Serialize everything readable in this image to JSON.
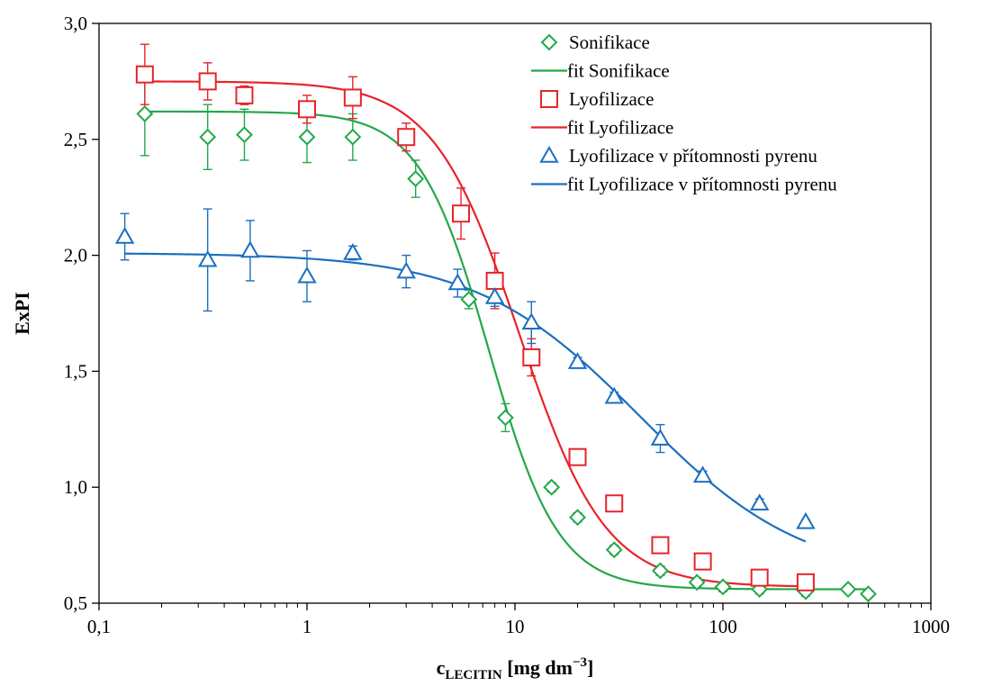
{
  "chart_data": {
    "type": "scatter",
    "xscale": "log",
    "xlim": [
      0.1,
      1000
    ],
    "ylim": [
      0.5,
      3.0
    ],
    "xlabel": "c",
    "xlabel_sub": "LECITIN",
    "xlabel_unit": " [mg dm",
    "xlabel_sup": "−3",
    "xlabel_close": "]",
    "ylabel": "ExPI",
    "grid": false,
    "legend_position": "top-right",
    "x_ticks": [
      0.1,
      1,
      10,
      100,
      1000
    ],
    "x_tick_labels": [
      "0,1",
      "1",
      "10",
      "100",
      "1000"
    ],
    "y_ticks": [
      0.5,
      1.0,
      1.5,
      2.0,
      2.5,
      3.0
    ],
    "y_tick_labels": [
      "0,5",
      "1,0",
      "1,5",
      "2,0",
      "2,5",
      "3,0"
    ],
    "series": [
      {
        "name": "Sonifikace",
        "marker": "diamond",
        "color": "#22a84a",
        "x": [
          0.166,
          0.333,
          0.5,
          1.0,
          1.66,
          3.33,
          6.0,
          9.0,
          15.0,
          20.0,
          30.0,
          50.0,
          75.0,
          100.0,
          150.0,
          250.0,
          400.0,
          500.0
        ],
        "y": [
          2.61,
          2.51,
          2.52,
          2.51,
          2.51,
          2.33,
          1.81,
          1.3,
          1.0,
          0.87,
          0.73,
          0.64,
          0.59,
          0.57,
          0.56,
          0.55,
          0.56,
          0.54
        ],
        "err": [
          0.18,
          0.14,
          0.11,
          0.11,
          0.1,
          0.08,
          0.04,
          0.06,
          0.02,
          0.02,
          0.02,
          0.02,
          0.02,
          0.02,
          0.02,
          0.02,
          0.01,
          0.01
        ]
      },
      {
        "name": "fit Sonifikace",
        "line": true,
        "color": "#22a84a",
        "bottom": 0.56,
        "top": 2.62,
        "x0": 7.5,
        "p": 2.6
      },
      {
        "name": "Lyofilizace",
        "marker": "square",
        "color": "#e8232a",
        "x": [
          0.166,
          0.333,
          0.5,
          1.0,
          1.66,
          3.0,
          5.5,
          8.0,
          12.0,
          20.0,
          30.0,
          50.0,
          80.0,
          150.0,
          250.0
        ],
        "y": [
          2.78,
          2.75,
          2.69,
          2.63,
          2.68,
          2.51,
          2.18,
          1.89,
          1.56,
          1.13,
          0.93,
          0.75,
          0.68,
          0.61,
          0.59
        ],
        "err": [
          0.13,
          0.08,
          0.04,
          0.06,
          0.09,
          0.06,
          0.11,
          0.12,
          0.08,
          0.03,
          0.02,
          0.02,
          0.02,
          0.02,
          0.02
        ]
      },
      {
        "name": "fit Lyofilizace",
        "line": true,
        "color": "#e8232a",
        "bottom": 0.57,
        "top": 2.75,
        "x0": 10.5,
        "p": 2.1
      },
      {
        "name": "Lyofilizace v přítomnosti pyrenu",
        "marker": "triangle",
        "color": "#1b6fc0",
        "x": [
          0.133,
          0.333,
          0.533,
          1.0,
          1.66,
          3.0,
          5.3,
          8.0,
          12.0,
          20.0,
          30.0,
          50.0,
          80.0,
          150.0,
          250.0
        ],
        "y": [
          2.08,
          1.98,
          2.02,
          1.91,
          2.01,
          1.93,
          1.88,
          1.82,
          1.71,
          1.54,
          1.39,
          1.21,
          1.05,
          0.93,
          0.85
        ],
        "err": [
          0.1,
          0.22,
          0.13,
          0.11,
          0.03,
          0.07,
          0.06,
          0.04,
          0.09,
          0.02,
          0.02,
          0.06,
          0.02,
          0.02,
          0.01
        ]
      },
      {
        "name": "fit Lyofilizace v přítomnosti pyrenu",
        "line": true,
        "color": "#1b6fc0",
        "bottom": 0.6,
        "top": 2.01,
        "x0": 40.0,
        "p": 1.1
      }
    ]
  }
}
